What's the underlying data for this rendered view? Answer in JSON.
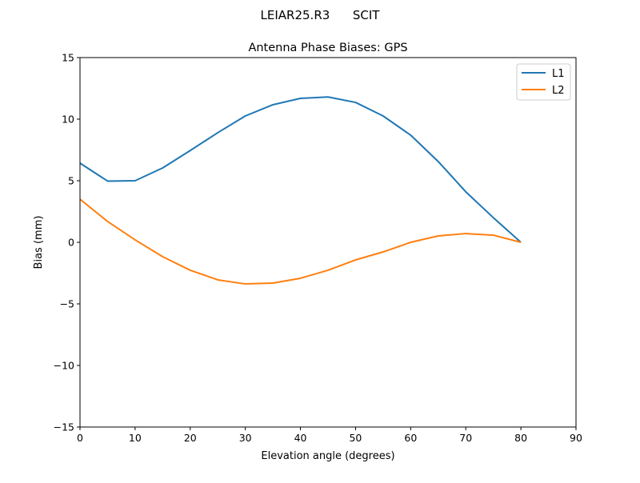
{
  "chart_data": {
    "type": "line",
    "suptitle": "LEIAR25.R3      SCIT",
    "title": "Antenna Phase Biases: GPS",
    "xlabel": "Elevation angle (degrees)",
    "ylabel": "Bias (mm)",
    "xlim": [
      0,
      90
    ],
    "ylim": [
      -15,
      15
    ],
    "xticks": [
      0,
      10,
      20,
      30,
      40,
      50,
      60,
      70,
      80,
      90
    ],
    "yticks": [
      -15,
      -10,
      -5,
      0,
      5,
      10,
      15
    ],
    "ytick_labels": [
      "−15",
      "−10",
      "−5",
      "0",
      "5",
      "10",
      "15"
    ],
    "grid": false,
    "legend": "top-right",
    "x": [
      0,
      5,
      10,
      15,
      20,
      25,
      30,
      35,
      40,
      45,
      50,
      55,
      60,
      65,
      70,
      75,
      80
    ],
    "series": [
      {
        "name": "L1",
        "color": "#1f77b4",
        "values": [
          6.43,
          4.97,
          5.0,
          6.04,
          7.45,
          8.9,
          10.26,
          11.17,
          11.69,
          11.8,
          11.36,
          10.26,
          8.7,
          6.56,
          4.1,
          2.0,
          0.0
        ]
      },
      {
        "name": "L2",
        "color": "#ff7f0e",
        "values": [
          3.5,
          1.69,
          0.2,
          -1.17,
          -2.27,
          -3.05,
          -3.38,
          -3.31,
          -2.92,
          -2.27,
          -1.43,
          -0.78,
          0.0,
          0.52,
          0.71,
          0.58,
          0.0
        ]
      }
    ]
  }
}
